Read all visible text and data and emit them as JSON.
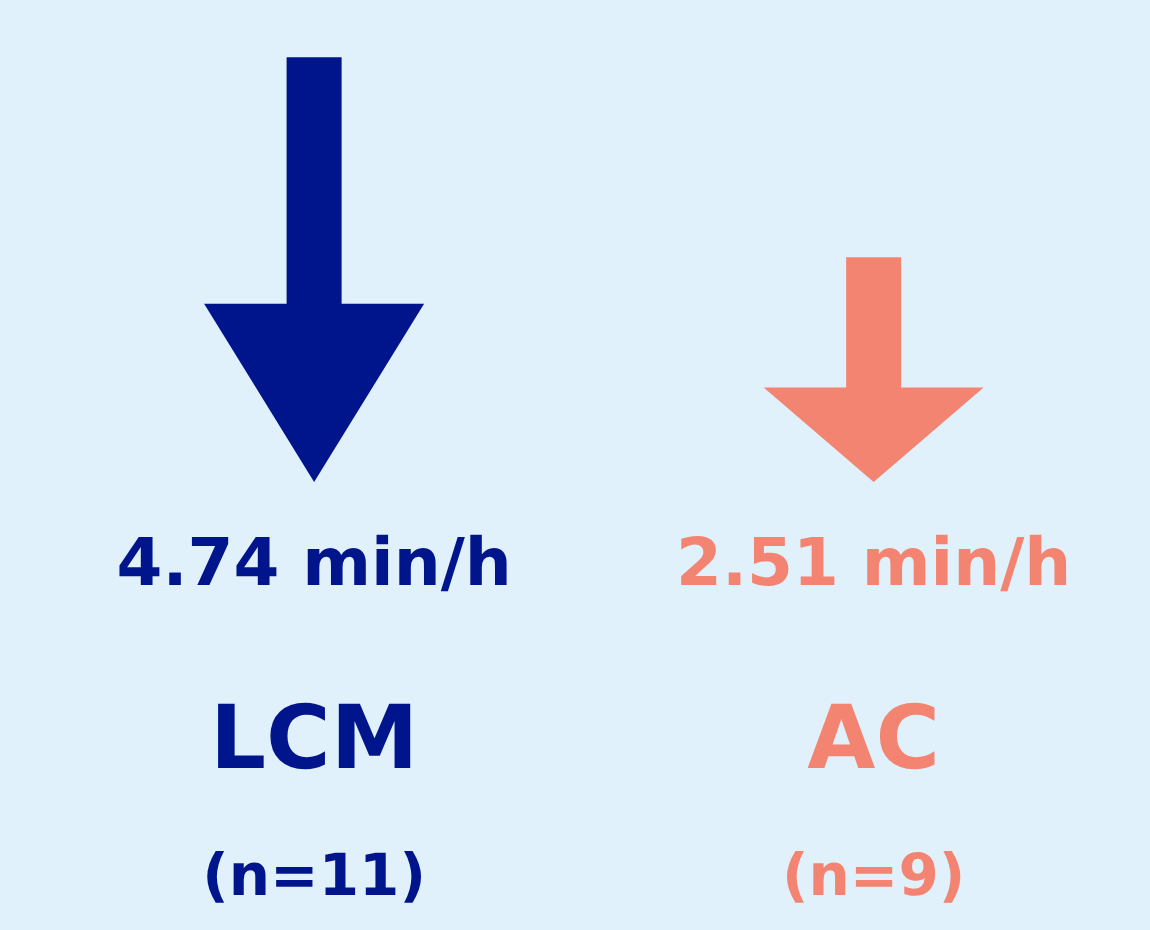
{
  "chart_data": {
    "type": "other",
    "categories": [
      "LCM",
      "AC"
    ],
    "values": [
      4.74,
      2.51
    ],
    "colors": [
      "#00148c",
      "#f48472"
    ],
    "value_labels": [
      "4.74 min/h",
      "2.51 min/h"
    ],
    "annotations": [
      "(n=11)",
      "(n=9)"
    ],
    "legend": false
  }
}
